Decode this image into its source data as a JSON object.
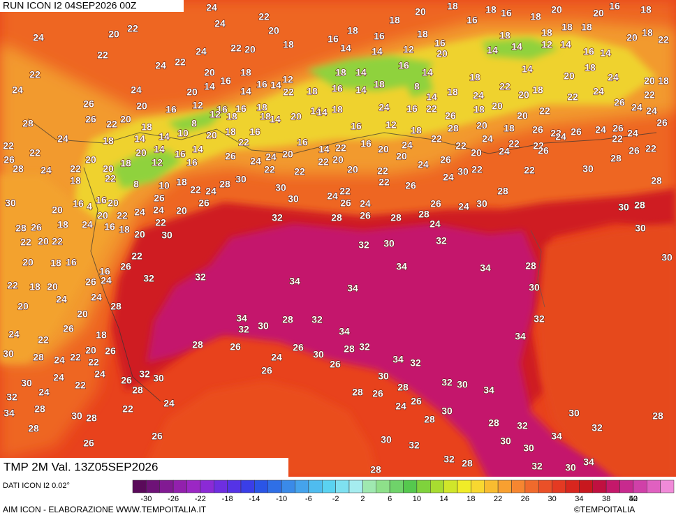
{
  "header": {
    "run": "RUN ICON I2 04SEP2026 00Z"
  },
  "map": {
    "labels": [
      24,
      22,
      20,
      18,
      16,
      18,
      16,
      18,
      20,
      20,
      16,
      18,
      24,
      20,
      22,
      24,
      20,
      18,
      18,
      16,
      18,
      16,
      18,
      18,
      18,
      18,
      20,
      18,
      22,
      22,
      24,
      22,
      20,
      18,
      16,
      14,
      14,
      12,
      20,
      14,
      14,
      12,
      14,
      16,
      14,
      22,
      24,
      22,
      20,
      18,
      12,
      18,
      14,
      16,
      14,
      18,
      14,
      20,
      18,
      24,
      20,
      18,
      24,
      24,
      20,
      14,
      16,
      14,
      16,
      14,
      22,
      18,
      16,
      14,
      18,
      8,
      14,
      18,
      24,
      22,
      20,
      18,
      22,
      24,
      22,
      26,
      20,
      16,
      12,
      16,
      16,
      18,
      14,
      18,
      24,
      16,
      22,
      26,
      18,
      20,
      20,
      22,
      26,
      24,
      24,
      28,
      26,
      22,
      20,
      18,
      8,
      12,
      18,
      18,
      14,
      20,
      14,
      16,
      12,
      18,
      28,
      20,
      18,
      26,
      22,
      26,
      24,
      26,
      26,
      22,
      24,
      18,
      14,
      14,
      10,
      20,
      18,
      22,
      16,
      16,
      14,
      22,
      16,
      20,
      24,
      22,
      22,
      24,
      22,
      22,
      24,
      22,
      24,
      22,
      26,
      22,
      20,
      18,
      20,
      14,
      16,
      14,
      26,
      24,
      24,
      20,
      22,
      20,
      20,
      24,
      26,
      20,
      24,
      26,
      28,
      26,
      28,
      24,
      22,
      20,
      12,
      16,
      22,
      22,
      20,
      22,
      30,
      22,
      22,
      30,
      28,
      18,
      22,
      8,
      10,
      18,
      22,
      24,
      28,
      30,
      30,
      24,
      22,
      22,
      26,
      24,
      28,
      30,
      16,
      16,
      20,
      26,
      26,
      30,
      26,
      24,
      26,
      24,
      30,
      30,
      28,
      20,
      4,
      20,
      22,
      24,
      24,
      20,
      32,
      28,
      26,
      28,
      28,
      24,
      28,
      26,
      18,
      24,
      16,
      18,
      22,
      20,
      30,
      30,
      22,
      20,
      22,
      22,
      32,
      30,
      32,
      20,
      18,
      16,
      16,
      26,
      34,
      34,
      28,
      30,
      22,
      18,
      20,
      26,
      24,
      32,
      32,
      34,
      34,
      30,
      20,
      24,
      24,
      28,
      20,
      32,
      26,
      24,
      18,
      34,
      32,
      30,
      28,
      32,
      34,
      34,
      22,
      20,
      26,
      28,
      26,
      26,
      28,
      32,
      30,
      28,
      24,
      22,
      22,
      24,
      30,
      26,
      34,
      32,
      24,
      32,
      30,
      26,
      22,
      24,
      26,
      30,
      30,
      28,
      32,
      30,
      34,
      28,
      26,
      28,
      32,
      24,
      24,
      22,
      28,
      24,
      26,
      30,
      34,
      30,
      28,
      28,
      28,
      32,
      30,
      32,
      28,
      28,
      30,
      34,
      30,
      32,
      26,
      26,
      30,
      32,
      28,
      32,
      30,
      34,
      28
    ]
  },
  "footer": {
    "variable": "TMP 2M Val. 13Z05SEP2026",
    "data_source": "DATI ICON I2 0.02°",
    "credit": "AIM ICON - ELABORAZIONE WWW.TEMPOITALIA.IT",
    "copyright": "©TEMPOITALIA"
  },
  "legend": {
    "ticks": [
      -30,
      -26,
      -22,
      -18,
      -14,
      -10,
      -6,
      -2,
      2,
      6,
      10,
      14,
      18,
      22,
      26,
      30,
      34,
      38,
      42,
      50
    ],
    "colors": [
      "#5a0a5a",
      "#6e1277",
      "#821a93",
      "#9220ad",
      "#9b27c4",
      "#8b2ad6",
      "#6e2ee0",
      "#5533e6",
      "#3a3ee8",
      "#2a55e6",
      "#2f6fe6",
      "#3a8ae8",
      "#45a3ec",
      "#4fbcef",
      "#5ad2f0",
      "#7ee0f0",
      "#a5ecef",
      "#9fe8b0",
      "#8ee08a",
      "#6fd36a",
      "#55c84e",
      "#7fd23c",
      "#a8dc30",
      "#d0e62a",
      "#f0ec28",
      "#f8d830",
      "#f8bc30",
      "#f8a030",
      "#f68630",
      "#f06a2c",
      "#ea5028",
      "#e43a22",
      "#d8261e",
      "#c8181e",
      "#c01040",
      "#c4186a",
      "#c82a8e",
      "#d040a8",
      "#e060c0",
      "#f08ad8"
    ]
  }
}
